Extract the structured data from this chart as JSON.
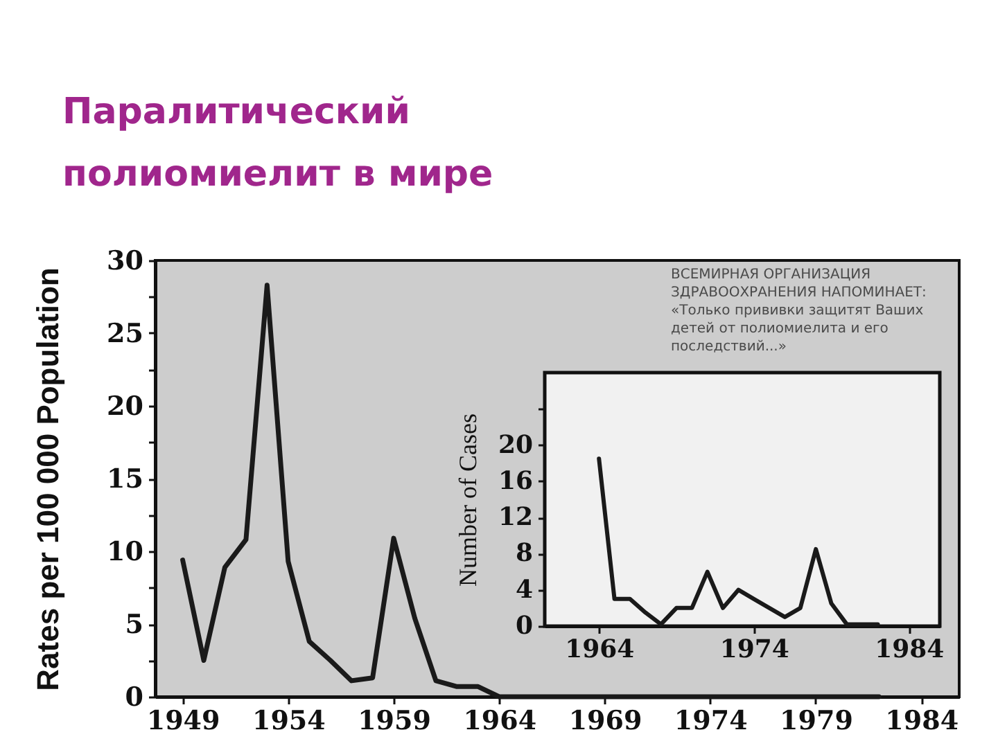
{
  "chart_data": [
    {
      "type": "line",
      "title": "Паралитический полиомиелит в мире",
      "ylabel": "Rates per 100 000 Population",
      "x": [
        1949,
        1950,
        1951,
        1952,
        1953,
        1954,
        1955,
        1956,
        1957,
        1958,
        1959,
        1960,
        1961,
        1962,
        1963,
        1964,
        1965,
        1966,
        1967,
        1968,
        1969,
        1970,
        1971,
        1972,
        1973,
        1974,
        1975,
        1976,
        1977,
        1978,
        1979,
        1980,
        1981,
        1982
      ],
      "series": [
        {
          "color": "#1a1a1a",
          "values": [
            9.4,
            2.5,
            8.9,
            10.8,
            28.3,
            9.3,
            3.8,
            2.5,
            1.1,
            1.3,
            10.9,
            5.4,
            1.1,
            0.7,
            0.7,
            0,
            0,
            0,
            0,
            0,
            0,
            0,
            0,
            0,
            0,
            0,
            0,
            0,
            0,
            0,
            0,
            0,
            0,
            0
          ]
        }
      ],
      "xlim": [
        1947.7,
        1985.8
      ],
      "xticks": [
        1949,
        1954,
        1959,
        1964,
        1969,
        1974,
        1979,
        1984
      ],
      "ylim": [
        0,
        30
      ],
      "yticks": [
        0,
        {
          "value": 2.5,
          "label": null
        },
        5,
        {
          "value": 7.5,
          "label": null
        },
        10,
        {
          "value": 12.5,
          "label": null
        },
        15,
        {
          "value": 17.5,
          "label": null
        },
        20,
        {
          "value": 22.5,
          "label": null
        },
        25,
        {
          "value": 27.5,
          "label": null
        },
        30
      ],
      "marker": "none",
      "line_style": "solid",
      "annotations": [
        "ВСЕМИРНАЯ ОРГАНИЗАЦИЯ ЗДРАВООХРАНЕНИЯ НАПОМИНАЕТ: «Только прививки защитят Ваших детей от полиомиелита и его последствий...»"
      ]
    },
    {
      "type": "line",
      "ylabel": "Number of Cases",
      "x": [
        1964,
        1965,
        1966,
        1967,
        1968,
        1969,
        1970,
        1971,
        1972,
        1973,
        1974,
        1975,
        1976,
        1977,
        1978,
        1979,
        1980,
        1981,
        1982
      ],
      "series": [
        {
          "color": "#1a1a1a",
          "values": [
            18.5,
            3,
            3,
            1.5,
            0.2,
            2,
            2,
            6,
            2,
            4,
            3,
            2,
            1,
            2,
            8.5,
            2.5,
            0.2,
            0.2,
            0.2
          ]
        }
      ],
      "xlim": [
        1960.5,
        1986
      ],
      "xticks": [
        1964,
        1974,
        1984
      ],
      "ylim": [
        0,
        28
      ],
      "yticks": [
        0,
        4,
        8,
        12,
        16,
        20,
        {
          "value": 24,
          "label": null
        }
      ],
      "marker": "none",
      "line_style": "solid"
    }
  ]
}
